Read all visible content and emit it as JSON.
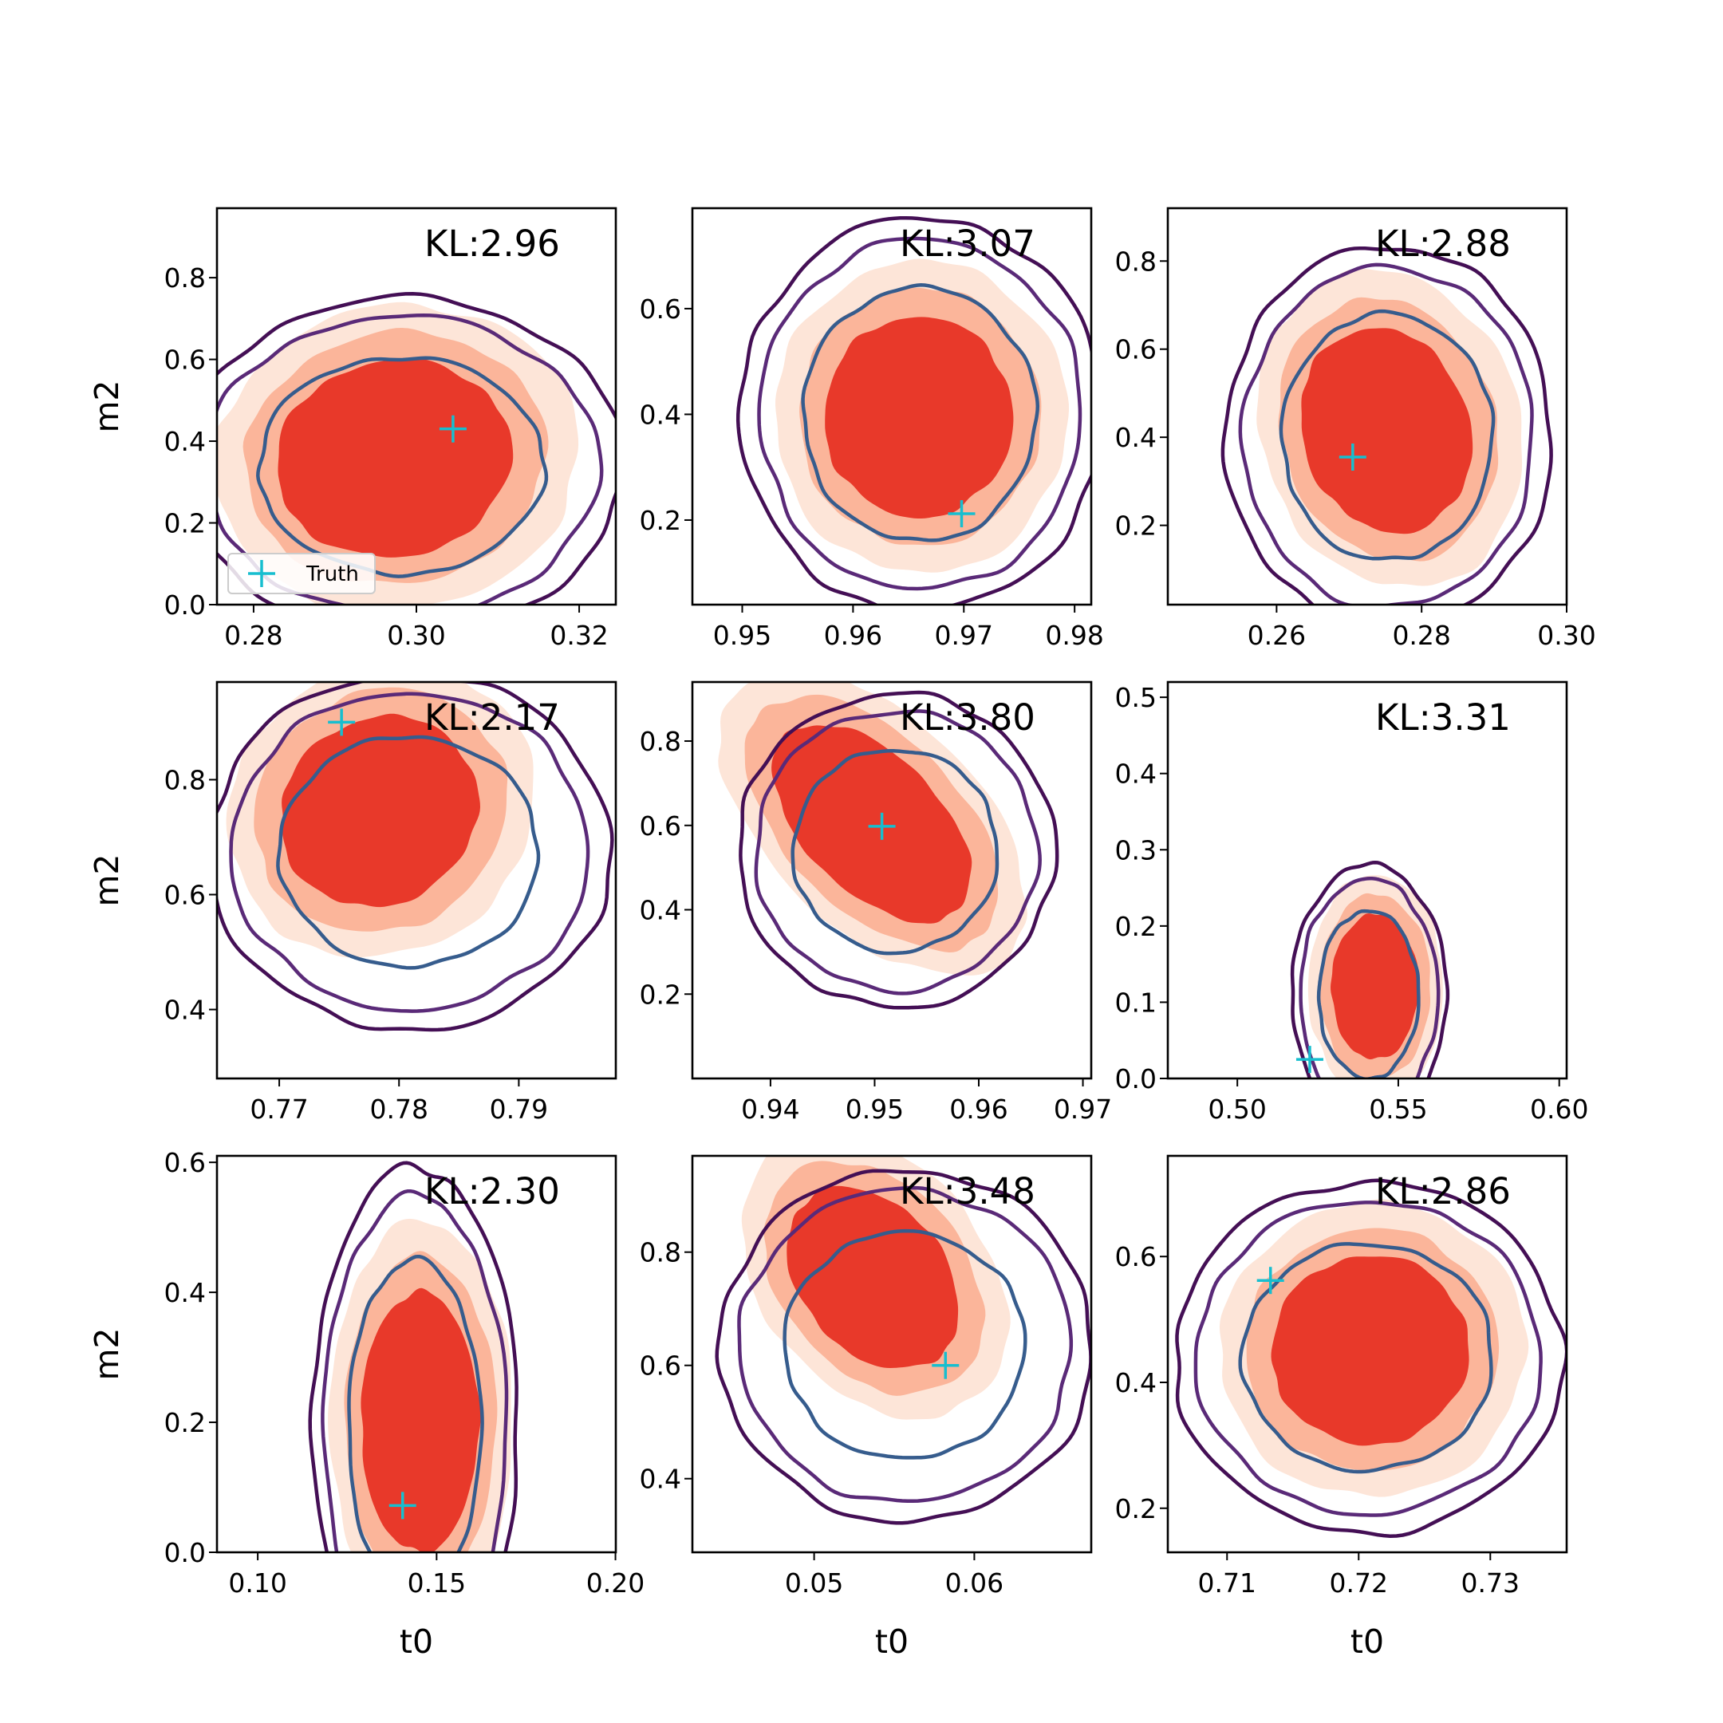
{
  "chart_data": {
    "type": "contour-grid",
    "xlabel": "t0",
    "ylabel": "m2",
    "legend": {
      "label": "Truth",
      "marker": "+",
      "placement": "lower-left",
      "panel": 0
    },
    "colors": {
      "fill_light": "#fde5d8",
      "fill_mid": "#fbb59a",
      "fill_dark": "#e8392a",
      "contour_outer": "#440f55",
      "contour_mid": "#5a2a78",
      "contour_inner": "#365c8d",
      "truth": "#17becf"
    },
    "panels": [
      {
        "kl": "KL:2.96",
        "xlim": [
          0.2755,
          0.3245
        ],
        "ylim": [
          0.0,
          0.97
        ],
        "xticks": [
          0.28,
          0.3,
          0.32
        ],
        "xtick_labels": [
          "0.28",
          "0.30",
          "0.32"
        ],
        "yticks": [
          0.0,
          0.2,
          0.4,
          0.6,
          0.8
        ],
        "ytick_labels": [
          "0.0",
          "0.2",
          "0.4",
          "0.6",
          "0.8"
        ],
        "truth": [
          0.3045,
          0.43
        ],
        "posterior": {
          "cx": 0.2965,
          "cy": 0.355,
          "rx": 0.0145,
          "ry": 0.24,
          "rot": -10,
          "skew": 0.05
        },
        "reference": {
          "cx": 0.2978,
          "cy": 0.34,
          "rx": 0.0175,
          "ry": 0.265
        }
      },
      {
        "kl": "KL:3.07",
        "xlim": [
          0.9455,
          0.9815
        ],
        "ylim": [
          0.04,
          0.79
        ],
        "xticks": [
          0.95,
          0.96,
          0.97,
          0.98
        ],
        "xtick_labels": [
          "0.95",
          "0.96",
          "0.97",
          "0.98"
        ],
        "yticks": [
          0.2,
          0.4,
          0.6
        ],
        "ytick_labels": [
          "0.2",
          "0.4",
          "0.6"
        ],
        "truth": [
          0.9698,
          0.212
        ],
        "posterior": {
          "cx": 0.9655,
          "cy": 0.395,
          "rx": 0.0085,
          "ry": 0.19,
          "rot": 0,
          "skew": 0.05
        },
        "reference": {
          "cx": 0.9658,
          "cy": 0.4,
          "rx": 0.0105,
          "ry": 0.24
        }
      },
      {
        "kl": "KL:2.88",
        "xlim": [
          0.245,
          0.3
        ],
        "ylim": [
          0.02,
          0.92
        ],
        "xticks": [
          0.26,
          0.28,
          0.3
        ],
        "xtick_labels": [
          "0.26",
          "0.28",
          "0.30"
        ],
        "yticks": [
          0.2,
          0.4,
          0.6,
          0.8
        ],
        "ytick_labels": [
          "0.2",
          "0.4",
          "0.6",
          "0.8"
        ],
        "truth": [
          0.2705,
          0.355
        ],
        "posterior": {
          "cx": 0.274,
          "cy": 0.41,
          "rx": 0.0115,
          "ry": 0.235,
          "rot": -18,
          "skew": 0.1
        },
        "reference": {
          "cx": 0.275,
          "cy": 0.4,
          "rx": 0.0145,
          "ry": 0.28
        }
      },
      {
        "kl": "KL:2.17",
        "xlim": [
          0.7648,
          0.7981
        ],
        "ylim": [
          0.28,
          0.97
        ],
        "xticks": [
          0.77,
          0.78,
          0.79
        ],
        "xtick_labels": [
          "0.77",
          "0.78",
          "0.79"
        ],
        "yticks": [
          0.4,
          0.6,
          0.8
        ],
        "ytick_labels": [
          "0.4",
          "0.6",
          "0.8"
        ],
        "truth": [
          0.7752,
          0.9
        ],
        "posterior": {
          "cx": 0.778,
          "cy": 0.74,
          "rx": 0.0085,
          "ry": 0.16,
          "rot": -35,
          "skew": 0.05
        },
        "reference": {
          "cx": 0.7806,
          "cy": 0.675,
          "rx": 0.0108,
          "ry": 0.2
        }
      },
      {
        "kl": "KL:3.80",
        "xlim": [
          0.9325,
          0.9708
        ],
        "ylim": [
          0.0,
          0.94
        ],
        "xticks": [
          0.94,
          0.95,
          0.96,
          0.97
        ],
        "xtick_labels": [
          "0.94",
          "0.95",
          "0.96",
          "0.97"
        ],
        "yticks": [
          0.2,
          0.4,
          0.6,
          0.8
        ],
        "ytick_labels": [
          "0.2",
          "0.4",
          "0.6",
          "0.8"
        ],
        "truth": [
          0.9507,
          0.598
        ],
        "posterior": {
          "cx": 0.9495,
          "cy": 0.6,
          "rx": 0.0065,
          "ry": 0.29,
          "rot": -45,
          "skew": 0.05
        },
        "reference": {
          "cx": 0.9518,
          "cy": 0.54,
          "rx": 0.0098,
          "ry": 0.24
        }
      },
      {
        "kl": "KL:3.31",
        "xlim": [
          0.4784,
          0.6023
        ],
        "ylim": [
          0.0,
          0.52
        ],
        "xticks": [
          0.5,
          0.55,
          0.6
        ],
        "xtick_labels": [
          "0.50",
          "0.55",
          "0.60"
        ],
        "yticks": [
          0.0,
          0.1,
          0.2,
          0.3,
          0.4,
          0.5
        ],
        "ytick_labels": [
          "0.0",
          "0.1",
          "0.2",
          "0.3",
          "0.4",
          "0.5"
        ],
        "truth": [
          0.5225,
          0.025
        ],
        "posterior": {
          "cx": 0.542,
          "cy": 0.12,
          "rx": 0.0135,
          "ry": 0.095,
          "rot": 0,
          "skew": 0.05
        },
        "reference": {
          "cx": 0.5405,
          "cy": 0.11,
          "rx": 0.0155,
          "ry": 0.11
        }
      },
      {
        "kl": "KL:2.30",
        "xlim": [
          0.0886,
          0.2001
        ],
        "ylim": [
          0.0,
          0.61
        ],
        "xticks": [
          0.1,
          0.15,
          0.2
        ],
        "xtick_labels": [
          "0.10",
          "0.15",
          "0.20"
        ],
        "yticks": [
          0.0,
          0.2,
          0.4,
          0.6
        ],
        "ytick_labels": [
          "0.0",
          "0.2",
          "0.4",
          "0.6"
        ],
        "truth": [
          0.1405,
          0.072
        ],
        "posterior": {
          "cx": 0.1445,
          "cy": 0.2,
          "rx": 0.0165,
          "ry": 0.2,
          "rot": 0,
          "skew": 0.05
        },
        "reference": {
          "cx": 0.1435,
          "cy": 0.19,
          "rx": 0.0185,
          "ry": 0.26
        }
      },
      {
        "kl": "KL:3.48",
        "xlim": [
          0.0424,
          0.0673
        ],
        "ylim": [
          0.27,
          0.97
        ],
        "xticks": [
          0.05,
          0.06
        ],
        "xtick_labels": [
          "0.05",
          "0.06"
        ],
        "yticks": [
          0.4,
          0.6,
          0.8
        ],
        "ytick_labels": [
          "0.4",
          "0.6",
          "0.8"
        ],
        "truth": [
          0.0582,
          0.6
        ],
        "posterior": {
          "cx": 0.0535,
          "cy": 0.75,
          "rx": 0.0045,
          "ry": 0.18,
          "rot": -40,
          "skew": 0.05
        },
        "reference": {
          "cx": 0.0555,
          "cy": 0.635,
          "rx": 0.0075,
          "ry": 0.2
        }
      },
      {
        "kl": "KL:2.86",
        "xlim": [
          0.7055,
          0.7358
        ],
        "ylim": [
          0.13,
          0.76
        ],
        "xticks": [
          0.71,
          0.72,
          0.73
        ],
        "xtick_labels": [
          "0.71",
          "0.72",
          "0.73"
        ],
        "yticks": [
          0.2,
          0.4,
          0.6
        ],
        "ytick_labels": [
          "0.2",
          "0.4",
          "0.6"
        ],
        "truth": [
          0.7133,
          0.562
        ],
        "posterior": {
          "cx": 0.7205,
          "cy": 0.45,
          "rx": 0.0075,
          "ry": 0.15,
          "rot": -10,
          "skew": 0.05
        },
        "reference": {
          "cx": 0.7205,
          "cy": 0.44,
          "rx": 0.0095,
          "ry": 0.18
        }
      }
    ]
  }
}
